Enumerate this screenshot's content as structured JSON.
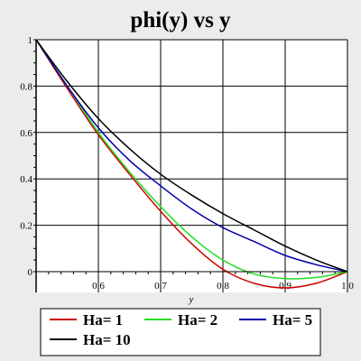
{
  "chart_data": {
    "type": "line",
    "title": "phi(y) vs y",
    "xlabel": "y",
    "ylabel": "",
    "xlim": [
      0.5,
      1.0
    ],
    "ylim": [
      -0.09,
      1.0
    ],
    "x_ticks": [
      0.6,
      0.7,
      0.8,
      0.9,
      1.0
    ],
    "x_tick_labels": [
      "0.6",
      "0.7",
      "0.8",
      "0.9",
      "1.0"
    ],
    "y_ticks": [
      0,
      0.2,
      0.4,
      0.6,
      0.8,
      1
    ],
    "y_tick_labels": [
      "0",
      "0.2",
      "0.4",
      "0.6",
      "0.8",
      "1"
    ],
    "grid": true,
    "legend_position": "bottom",
    "series": [
      {
        "name": "Ha= 1",
        "color": "#cc0000",
        "x": [
          0.5,
          0.55,
          0.6,
          0.65,
          0.7,
          0.75,
          0.8,
          0.85,
          0.9,
          0.95,
          1.0
        ],
        "y": [
          1.0,
          0.79,
          0.59,
          0.42,
          0.26,
          0.12,
          0.01,
          -0.05,
          -0.07,
          -0.05,
          0.0
        ]
      },
      {
        "name": "Ha= 2",
        "color": "#22dd22",
        "x": [
          0.5,
          0.55,
          0.6,
          0.65,
          0.7,
          0.75,
          0.8,
          0.85,
          0.9,
          0.95,
          1.0
        ],
        "y": [
          1.0,
          0.8,
          0.6,
          0.43,
          0.28,
          0.15,
          0.05,
          -0.01,
          -0.03,
          -0.025,
          0.0
        ]
      },
      {
        "name": "Ha= 5",
        "color": "#0000aa",
        "x": [
          0.5,
          0.55,
          0.6,
          0.65,
          0.7,
          0.75,
          0.8,
          0.85,
          0.9,
          0.95,
          1.0
        ],
        "y": [
          1.0,
          0.8,
          0.62,
          0.48,
          0.37,
          0.27,
          0.19,
          0.13,
          0.07,
          0.03,
          0.0
        ]
      },
      {
        "name": "Ha= 10",
        "color": "#000000",
        "x": [
          0.5,
          0.55,
          0.6,
          0.65,
          0.7,
          0.75,
          0.8,
          0.85,
          0.9,
          0.95,
          1.0
        ],
        "y": [
          1.0,
          0.82,
          0.66,
          0.53,
          0.42,
          0.33,
          0.25,
          0.18,
          0.11,
          0.05,
          0.0
        ]
      }
    ]
  }
}
